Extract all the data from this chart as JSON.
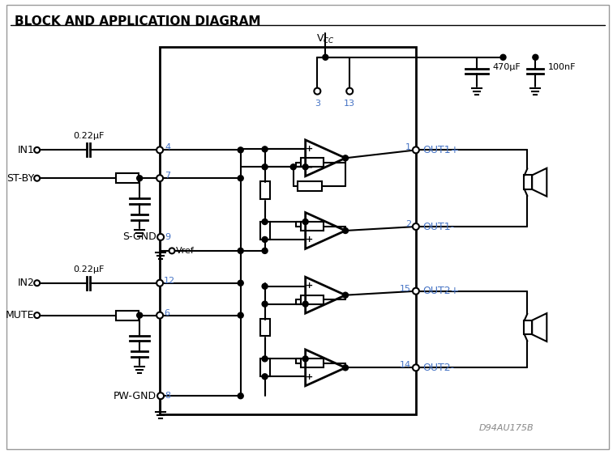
{
  "title": "BLOCK AND APPLICATION DIAGRAM",
  "title_fontsize": 11,
  "title_color": "#000000",
  "background_color": "#ffffff",
  "border_color": "#000000",
  "line_color": "#000000",
  "label_color_blue": "#4472C4",
  "label_color_black": "#000000",
  "pin_labels": {
    "pin1": "OUT1+",
    "pin2": "OUT1-",
    "pin3": "3",
    "pin4": "4",
    "pin6": "6",
    "pin7": "7",
    "pin8": "8",
    "pin9": "9",
    "pin12": "12",
    "pin13": "13",
    "pin14": "OUT2-",
    "pin15": "OUT2+"
  },
  "component_labels": {
    "cap1": "0.22μF",
    "cap2": "0.22μF",
    "cap3": "470μF",
    "cap4": "100nF",
    "vref": "Vref",
    "vcc": "V CC",
    "sgnd": "S-GND",
    "pwgnd": "PW-GND",
    "in1": "IN1",
    "in2": "IN2",
    "stby": "ST-BY",
    "mute": "MUTE"
  },
  "note": "D94AU175B"
}
